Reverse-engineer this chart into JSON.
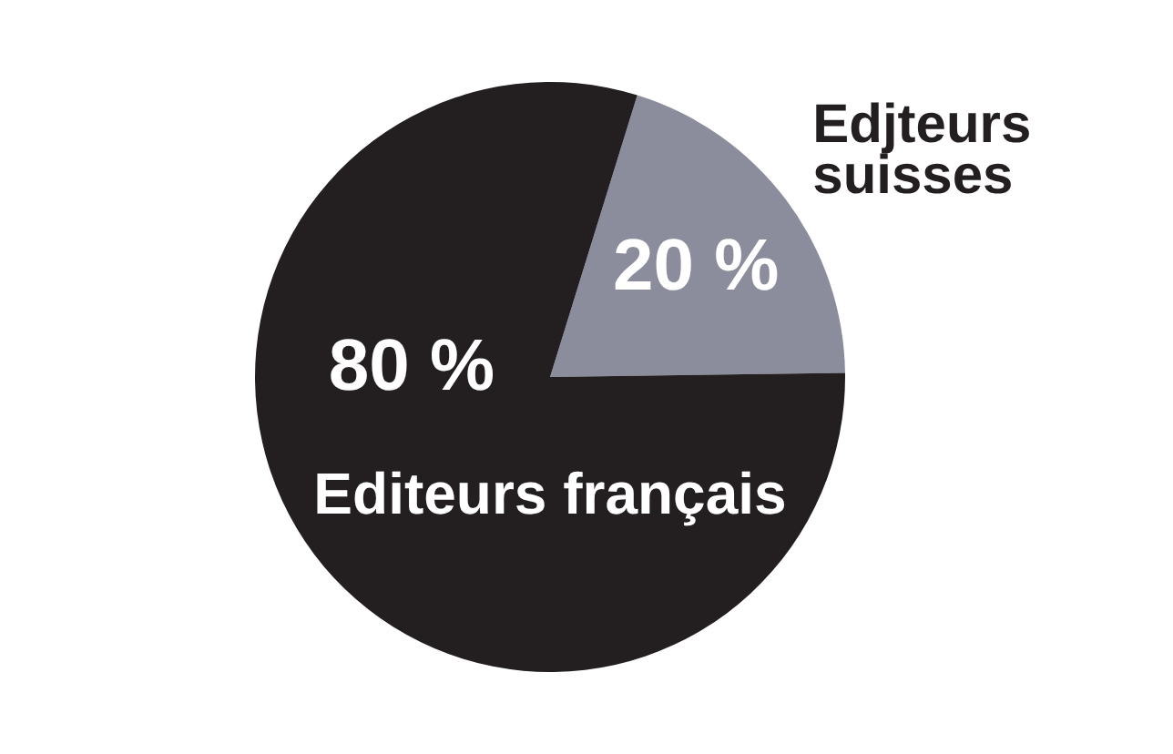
{
  "chart_data": {
    "type": "pie",
    "categories": [
      "Edjteurs suisses",
      "Editeurs français"
    ],
    "values": [
      20,
      80
    ],
    "colors": [
      "#8b8d9c",
      "#231f20"
    ],
    "value_labels": [
      "20 %",
      "80 %"
    ]
  }
}
